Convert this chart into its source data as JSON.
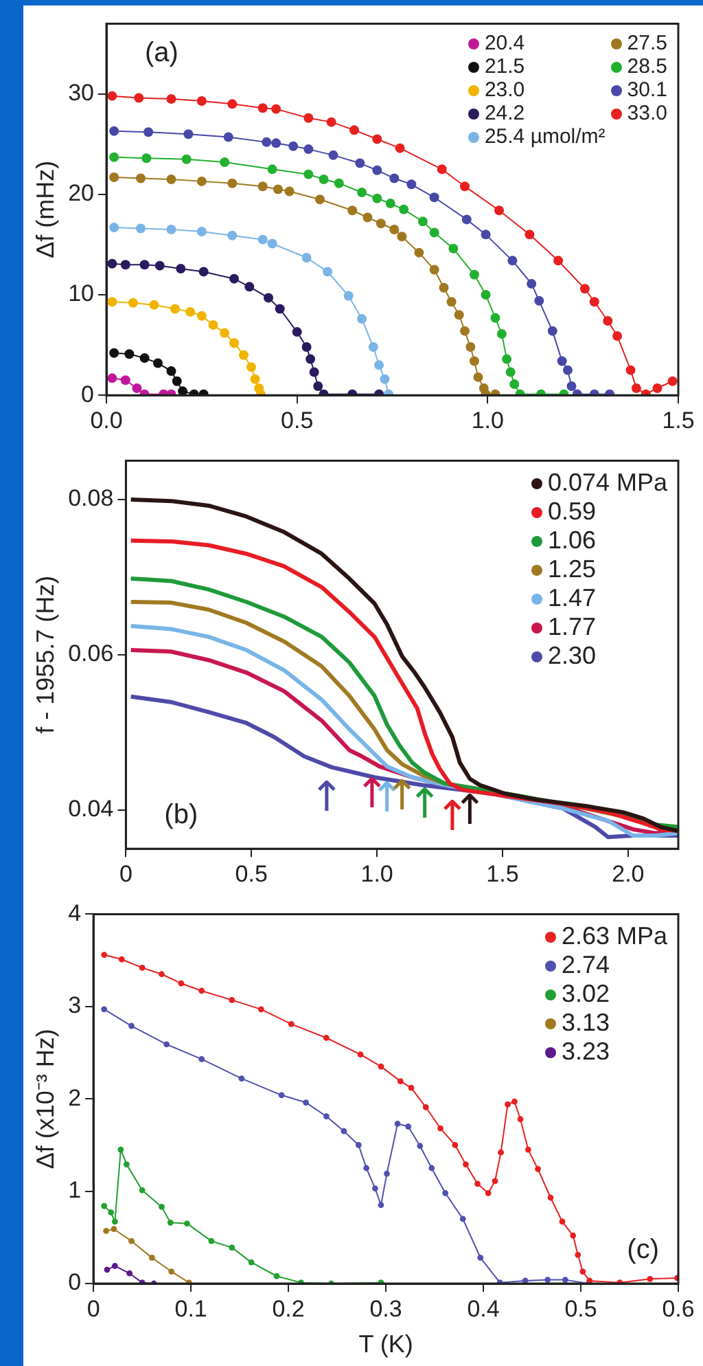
{
  "chart_data": [
    {
      "type": "line",
      "ylabel": "Δf (mHz)",
      "annotations": [
        "(a)"
      ],
      "legend": "top right",
      "marker": "circle",
      "xlim": [
        0,
        1.5
      ],
      "ylim": [
        0,
        37
      ],
      "xticks": [
        {
          "value": 0,
          "label": "0.0"
        },
        0.5,
        {
          "value": 1,
          "label": "1.0"
        },
        1.5
      ],
      "yticks": [
        0,
        10,
        20,
        30
      ],
      "series": [
        {
          "name": "20.4",
          "color": "#c0189a",
          "x": [
            0.015,
            0.05,
            0.08,
            0.1,
            0.15,
            0.17
          ],
          "values": [
            1.7,
            1.5,
            0.7,
            0.1,
            0.1,
            0.1
          ]
        },
        {
          "name": "21.5",
          "color": "#111111",
          "x": [
            0.02,
            0.06,
            0.1,
            0.135,
            0.17,
            0.185,
            0.2,
            0.23,
            0.255
          ],
          "values": [
            4.2,
            4.1,
            3.7,
            3.2,
            2.4,
            1.4,
            0.4,
            0.1,
            0.1
          ]
        },
        {
          "name": "23.0",
          "color": "#f0b400",
          "x": [
            0.015,
            0.07,
            0.125,
            0.18,
            0.22,
            0.25,
            0.28,
            0.31,
            0.335,
            0.36,
            0.38,
            0.39,
            0.4,
            0.405
          ],
          "values": [
            9.3,
            9.2,
            9.0,
            8.6,
            8.3,
            7.9,
            7.0,
            6.2,
            5.2,
            4.0,
            2.8,
            1.6,
            0.7,
            0.1
          ]
        },
        {
          "name": "24.2",
          "color": "#2a1a5e",
          "x": [
            0.015,
            0.05,
            0.1,
            0.14,
            0.195,
            0.255,
            0.335,
            0.375,
            0.425,
            0.455,
            0.5,
            0.525,
            0.535,
            0.545,
            0.555,
            0.57,
            0.645,
            0.715
          ],
          "values": [
            13.1,
            13.0,
            13.0,
            12.9,
            12.6,
            12.3,
            11.6,
            10.8,
            9.7,
            8.6,
            6.3,
            4.8,
            3.6,
            2.3,
            0.9,
            0.1,
            0.1,
            0.1
          ]
        },
        {
          "name": "25.4 µmol/m²",
          "color": "#7ab4e6",
          "x": [
            0.02,
            0.09,
            0.17,
            0.25,
            0.33,
            0.41,
            0.435,
            0.525,
            0.58,
            0.635,
            0.67,
            0.7,
            0.715,
            0.73,
            0.74
          ],
          "values": [
            16.7,
            16.6,
            16.5,
            16.3,
            15.9,
            15.5,
            15.1,
            13.7,
            12.3,
            9.9,
            7.6,
            4.8,
            3.0,
            1.6,
            0.1
          ]
        },
        {
          "name": "27.5",
          "color": "#a07820",
          "x": [
            0.02,
            0.09,
            0.17,
            0.25,
            0.33,
            0.41,
            0.45,
            0.48,
            0.56,
            0.645,
            0.685,
            0.72,
            0.755,
            0.775,
            0.82,
            0.86,
            0.885,
            0.905,
            0.925,
            0.94,
            0.955,
            0.965,
            0.975,
            0.99,
            0.995,
            1.02
          ],
          "values": [
            21.7,
            21.6,
            21.5,
            21.3,
            21.1,
            20.8,
            20.5,
            20.3,
            19.5,
            18.4,
            17.7,
            17.1,
            16.5,
            15.8,
            14.2,
            12.5,
            10.7,
            9.3,
            8.0,
            6.4,
            4.8,
            3.4,
            1.8,
            0.7,
            0.1,
            0.1
          ]
        },
        {
          "name": "28.5",
          "color": "#22b030",
          "x": [
            0.02,
            0.105,
            0.21,
            0.31,
            0.435,
            0.53,
            0.57,
            0.61,
            0.67,
            0.71,
            0.745,
            0.78,
            0.83,
            0.86,
            0.91,
            0.965,
            0.995,
            1.02,
            1.037,
            1.05,
            1.06,
            1.07,
            1.085,
            1.14,
            1.2
          ],
          "values": [
            23.7,
            23.6,
            23.5,
            23.2,
            22.5,
            22.0,
            21.5,
            21.1,
            20.2,
            19.6,
            19.1,
            18.5,
            17.3,
            16.2,
            14.6,
            12.0,
            10.0,
            7.7,
            6.1,
            3.6,
            2.3,
            1.1,
            0.1,
            0.1,
            0.1
          ]
        },
        {
          "name": "30.1",
          "color": "#4848a8",
          "x": [
            0.02,
            0.11,
            0.215,
            0.32,
            0.42,
            0.445,
            0.49,
            0.53,
            0.595,
            0.665,
            0.71,
            0.755,
            0.8,
            0.86,
            0.945,
            0.995,
            1.065,
            1.115,
            1.135,
            1.17,
            1.195,
            1.21,
            1.22,
            1.235,
            1.28,
            1.32
          ],
          "values": [
            26.3,
            26.2,
            26.0,
            25.7,
            25.2,
            25.1,
            24.8,
            24.5,
            23.9,
            23.1,
            22.4,
            21.6,
            21.0,
            19.7,
            17.5,
            16.0,
            13.4,
            11.1,
            9.4,
            6.4,
            3.4,
            2.5,
            0.9,
            0.1,
            0.1,
            0.1
          ]
        },
        {
          "name": "33.0",
          "color": "#e82020",
          "x": [
            0.015,
            0.085,
            0.17,
            0.25,
            0.33,
            0.41,
            0.445,
            0.53,
            0.59,
            0.65,
            0.71,
            0.77,
            0.88,
            0.94,
            1.03,
            1.11,
            1.185,
            1.255,
            1.28,
            1.315,
            1.34,
            1.375,
            1.39,
            1.415,
            1.445,
            1.485
          ],
          "values": [
            29.8,
            29.6,
            29.5,
            29.3,
            29.0,
            28.6,
            28.5,
            27.6,
            27.2,
            26.4,
            25.5,
            24.6,
            22.5,
            20.8,
            18.4,
            16.0,
            13.4,
            10.6,
            9.3,
            7.4,
            5.9,
            2.5,
            0.7,
            0.1,
            0.7,
            1.4
          ]
        }
      ]
    },
    {
      "type": "line",
      "ylabel": "f - 1955.7 (Hz)",
      "legend": "top right",
      "marker": "none",
      "xlim": [
        0,
        2.2
      ],
      "ylim": [
        0.035,
        0.085
      ],
      "xticks": [
        0,
        0.5,
        {
          "value": 1,
          "label": "1.0"
        },
        1.5,
        {
          "value": 2,
          "label": "2.0"
        }
      ],
      "yticks": [
        0.04,
        0.06,
        0.08
      ],
      "annotations": [
        "(b)",
        {
          "text": "↑",
          "x": 0.8,
          "y": 0.0457
        },
        {
          "text": "↑",
          "x": 0.98,
          "y": 0.0461
        },
        {
          "text": "↑",
          "x": 1.04,
          "y": 0.0456
        },
        {
          "text": "↑",
          "x": 1.1,
          "y": 0.0459
        },
        {
          "text": "↑",
          "x": 1.19,
          "y": 0.0448
        },
        {
          "text": "↑",
          "x": 1.3,
          "y": 0.0432
        },
        {
          "text": "↑",
          "x": 1.37,
          "y": 0.044
        }
      ],
      "series": [
        {
          "name": "0.074 MPa",
          "color": "#2a1414",
          "x": [
            0.02,
            0.18,
            0.33,
            0.48,
            0.63,
            0.78,
            0.89,
            0.99,
            1.04,
            1.1,
            1.15,
            1.19,
            1.25,
            1.3,
            1.33,
            1.37,
            1.41,
            1.51,
            1.64,
            1.83,
            1.98,
            2.06,
            2.13,
            2.2
          ],
          "values": [
            0.08,
            0.0798,
            0.0792,
            0.0778,
            0.0758,
            0.073,
            0.0698,
            0.0666,
            0.0639,
            0.0598,
            0.0577,
            0.0558,
            0.0526,
            0.0494,
            0.0461,
            0.044,
            0.0432,
            0.0421,
            0.0413,
            0.0405,
            0.0397,
            0.0389,
            0.0378,
            0.0373
          ]
        },
        {
          "name": "0.59",
          "color": "#e81c24",
          "x": [
            0.02,
            0.18,
            0.33,
            0.48,
            0.63,
            0.78,
            0.89,
            0.99,
            1.08,
            1.16,
            1.19,
            1.22,
            1.25,
            1.29,
            1.34,
            1.51,
            1.74,
            1.92,
            2.06,
            2.13,
            2.2
          ],
          "values": [
            0.0747,
            0.0746,
            0.0741,
            0.073,
            0.0714,
            0.0687,
            0.0655,
            0.0623,
            0.0574,
            0.0531,
            0.0499,
            0.0472,
            0.0453,
            0.0434,
            0.0426,
            0.0418,
            0.0408,
            0.0397,
            0.0383,
            0.0375,
            0.0373
          ]
        },
        {
          "name": "1.06",
          "color": "#1e9a3a",
          "x": [
            0.02,
            0.18,
            0.33,
            0.48,
            0.63,
            0.78,
            0.89,
            0.99,
            1.04,
            1.09,
            1.14,
            1.19,
            1.27,
            1.46,
            1.74,
            2.02,
            2.11,
            2.2
          ],
          "values": [
            0.0698,
            0.0695,
            0.0684,
            0.0668,
            0.0649,
            0.0623,
            0.059,
            0.0547,
            0.051,
            0.0483,
            0.0461,
            0.0448,
            0.0434,
            0.0424,
            0.0408,
            0.0391,
            0.0381,
            0.0378
          ]
        },
        {
          "name": "1.25",
          "color": "#a07a22",
          "x": [
            0.02,
            0.18,
            0.33,
            0.48,
            0.63,
            0.78,
            0.89,
            0.99,
            1.04,
            1.1,
            1.18,
            1.27,
            1.46,
            1.74,
            2.02,
            2.11,
            2.2
          ],
          "values": [
            0.0668,
            0.0667,
            0.0658,
            0.0641,
            0.0617,
            0.0585,
            0.0547,
            0.0504,
            0.0477,
            0.0459,
            0.0445,
            0.0434,
            0.0424,
            0.0408,
            0.0389,
            0.0378,
            0.0373
          ]
        },
        {
          "name": "1.47",
          "color": "#78b4e8",
          "x": [
            0.02,
            0.18,
            0.33,
            0.48,
            0.63,
            0.78,
            0.89,
            0.99,
            1.04,
            1.14,
            1.27,
            1.46,
            1.74,
            1.92,
            2.02,
            2.11,
            2.2
          ],
          "values": [
            0.0637,
            0.0633,
            0.0623,
            0.0606,
            0.058,
            0.0542,
            0.0504,
            0.0472,
            0.0456,
            0.0442,
            0.0432,
            0.0421,
            0.0402,
            0.0386,
            0.0367,
            0.0367,
            0.037
          ]
        },
        {
          "name": "1.77",
          "color": "#c8174f",
          "x": [
            0.02,
            0.18,
            0.33,
            0.48,
            0.63,
            0.78,
            0.89,
            0.94,
            1.01,
            1.14,
            1.27,
            1.46,
            1.74,
            2.02,
            2.11,
            2.2
          ],
          "values": [
            0.0606,
            0.0604,
            0.0593,
            0.0577,
            0.0553,
            0.0515,
            0.0477,
            0.0469,
            0.0456,
            0.0442,
            0.0432,
            0.0421,
            0.0405,
            0.0375,
            0.037,
            0.0373
          ]
        },
        {
          "name": "2.30",
          "color": "#4e4aa8",
          "x": [
            0.02,
            0.18,
            0.33,
            0.48,
            0.59,
            0.71,
            0.82,
            0.99,
            1.18,
            1.46,
            1.74,
            1.87,
            1.92,
            2.02,
            2.2
          ],
          "values": [
            0.0546,
            0.0539,
            0.0526,
            0.0512,
            0.0494,
            0.0469,
            0.0455,
            0.0442,
            0.0432,
            0.0421,
            0.0402,
            0.0378,
            0.0365,
            0.0367,
            0.0367
          ]
        }
      ]
    },
    {
      "type": "line",
      "xlabel": "T (K)",
      "ylabel": "Δf (x10⁻³ Hz)",
      "annotations": [
        "(c)"
      ],
      "legend": "top right",
      "marker": "circle",
      "xlim": [
        0,
        0.6
      ],
      "ylim": [
        0,
        4
      ],
      "xticks": [
        0,
        0.1,
        0.2,
        0.3,
        0.4,
        0.5,
        0.6
      ],
      "yticks": [
        0,
        1,
        2,
        3,
        4
      ],
      "series": [
        {
          "name": "2.63 MPa",
          "color": "#e82020",
          "x": [
            0.011,
            0.029,
            0.05,
            0.07,
            0.09,
            0.111,
            0.142,
            0.172,
            0.203,
            0.239,
            0.274,
            0.295,
            0.315,
            0.326,
            0.341,
            0.356,
            0.371,
            0.382,
            0.394,
            0.405,
            0.412,
            0.418,
            0.425,
            0.432,
            0.438,
            0.446,
            0.456,
            0.469,
            0.481,
            0.492,
            0.497,
            0.502,
            0.509,
            0.54,
            0.571,
            0.599
          ],
          "values": [
            3.56,
            3.51,
            3.42,
            3.35,
            3.25,
            3.17,
            3.07,
            2.97,
            2.81,
            2.66,
            2.48,
            2.35,
            2.19,
            2.12,
            1.91,
            1.68,
            1.5,
            1.29,
            1.08,
            0.98,
            1.11,
            1.42,
            1.94,
            1.97,
            1.78,
            1.45,
            1.24,
            0.93,
            0.67,
            0.52,
            0.31,
            0.13,
            0.03,
            0.01,
            0.05,
            0.06
          ]
        },
        {
          "name": "2.74",
          "color": "#5050b0",
          "x": [
            0.011,
            0.039,
            0.075,
            0.111,
            0.152,
            0.193,
            0.218,
            0.239,
            0.257,
            0.272,
            0.28,
            0.289,
            0.295,
            0.301,
            0.312,
            0.323,
            0.335,
            0.347,
            0.361,
            0.379,
            0.397,
            0.417,
            0.443,
            0.466,
            0.484,
            0.508
          ],
          "values": [
            2.97,
            2.79,
            2.59,
            2.43,
            2.22,
            2.04,
            1.96,
            1.81,
            1.65,
            1.5,
            1.25,
            1.03,
            0.85,
            1.19,
            1.73,
            1.7,
            1.49,
            1.25,
            0.98,
            0.7,
            0.28,
            0.01,
            0.03,
            0.04,
            0.04,
            0
          ]
        },
        {
          "name": "3.02",
          "color": "#22a030",
          "x": [
            0.011,
            0.018,
            0.022,
            0.028,
            0.034,
            0.05,
            0.07,
            0.079,
            0.096,
            0.121,
            0.142,
            0.162,
            0.188,
            0.213,
            0.244,
            0.295
          ],
          "values": [
            0.84,
            0.77,
            0.67,
            1.45,
            1.29,
            1.01,
            0.83,
            0.66,
            0.65,
            0.46,
            0.39,
            0.23,
            0.08,
            0.01,
            0,
            0.01
          ]
        },
        {
          "name": "3.13",
          "color": "#a07820",
          "x": [
            0.013,
            0.021,
            0.039,
            0.06,
            0.08,
            0.098
          ],
          "values": [
            0.57,
            0.59,
            0.46,
            0.28,
            0.13,
            0.01
          ]
        },
        {
          "name": "3.23",
          "color": "#5a1a8a",
          "x": [
            0.014,
            0.022,
            0.037,
            0.05,
            0.062
          ],
          "values": [
            0.15,
            0.19,
            0.11,
            0.01,
            0
          ]
        }
      ]
    }
  ]
}
